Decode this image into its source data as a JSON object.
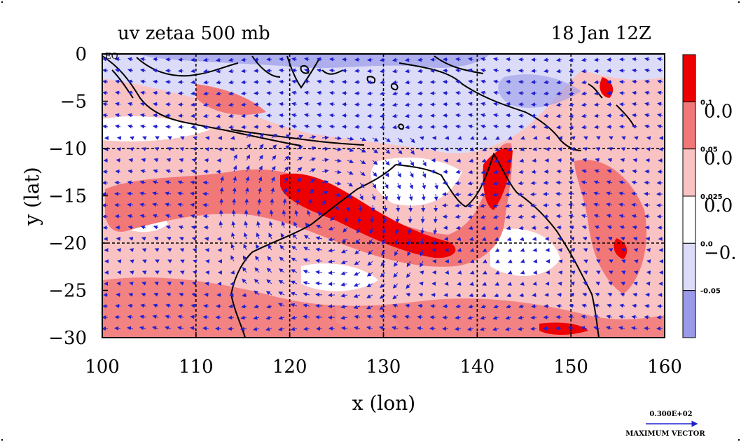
{
  "chart_data": {
    "type": "heatmap",
    "title_left": "uv zetaa 500 mb",
    "title_right": "18 Jan 12Z",
    "xlabel": "x (lon)",
    "ylabel": "y (lat)",
    "xlim": [
      100,
      160
    ],
    "ylim": [
      -30,
      0
    ],
    "x_ticks": [
      "100",
      "110",
      "120",
      "130",
      "140",
      "150",
      "160"
    ],
    "x_tick_values": [
      100,
      110,
      120,
      130,
      140,
      150,
      160
    ],
    "y_ticks": [
      "0",
      "−5",
      "−10",
      "−15",
      "−20",
      "−25",
      "−30"
    ],
    "y_tick_values": [
      0,
      -5,
      -10,
      -15,
      -20,
      -25,
      -30
    ],
    "eq_label": "EQ",
    "grid": true,
    "grid_lines_x": [
      110,
      120,
      130,
      140,
      150
    ],
    "grid_lines_y": [
      -10,
      -20
    ],
    "colorbar": {
      "levels": [
        "0.1",
        "0.05",
        "0.025",
        "0.0",
        "-0.05"
      ],
      "edge_labels": [
        "0.0",
        "0.0",
        "0.0",
        "−0."
      ],
      "colors": [
        "#ee0000",
        "#f27878",
        "#f9c3c3",
        "#ffffff",
        "#dcdcf8",
        "#9a9ae8"
      ]
    },
    "vector_scale": {
      "value": "0.300E+02",
      "label": "MAXIMUM VECTOR"
    }
  }
}
